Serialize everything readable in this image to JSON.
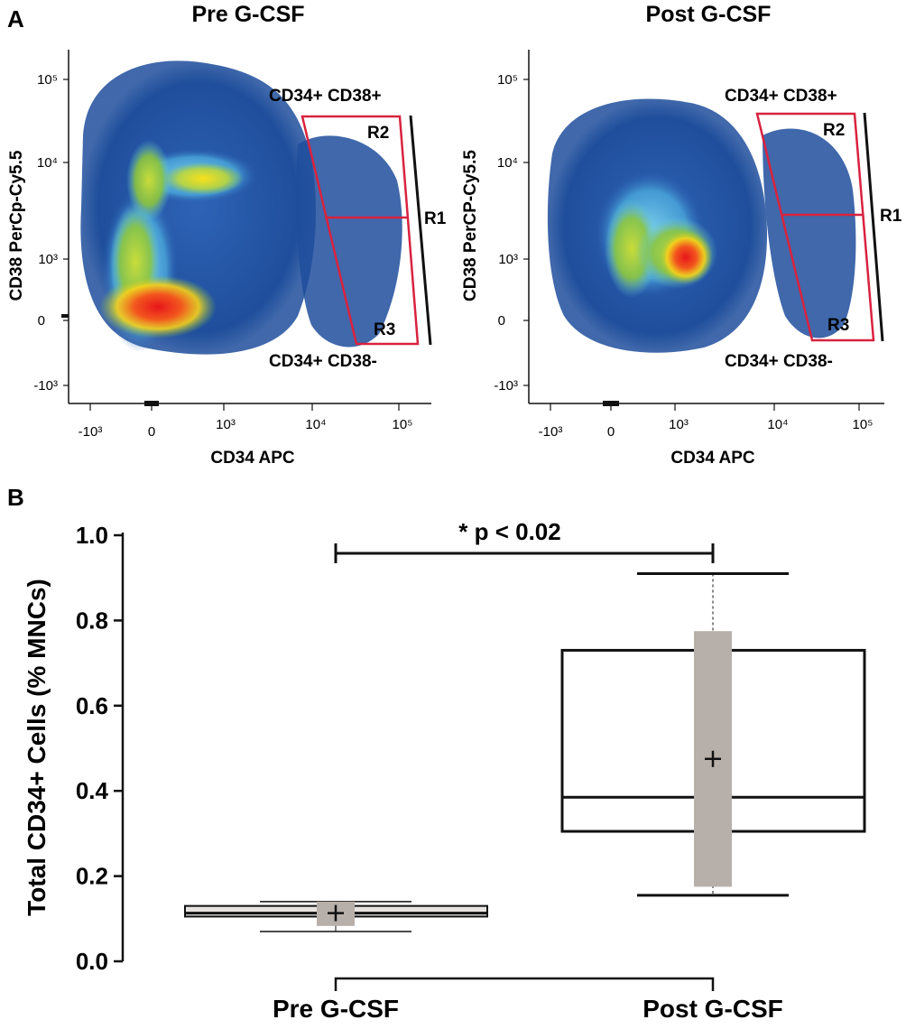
{
  "panel_a": {
    "letter": "A",
    "plots": [
      {
        "title": "Pre G-CSF",
        "xlabel": "CD34 APC",
        "ylabel": "CD38 PerCp-Cy5.5",
        "x_ticks": [
          "-10³",
          "0",
          "10³",
          "10⁴",
          "10⁵"
        ],
        "y_ticks": [
          "10⁵",
          "10⁴",
          "10³",
          "0",
          "-10³"
        ],
        "gate_top_label": "CD34+ CD38+",
        "gate_bottom_label": "CD34+ CD38-",
        "regions": [
          "R1",
          "R2",
          "R3"
        ]
      },
      {
        "title": "Post G-CSF",
        "xlabel": "CD34 APC",
        "ylabel": "CD38 PerCP-Cy5.5",
        "x_ticks": [
          "-10³",
          "0",
          "10³",
          "10⁴",
          "10⁵"
        ],
        "y_ticks": [
          "10⁵",
          "10⁴",
          "10³",
          "0",
          "-10³"
        ],
        "gate_top_label": "CD34+ CD38+",
        "gate_bottom_label": "CD34+ CD38-",
        "regions": [
          "R1",
          "R2",
          "R3"
        ]
      }
    ]
  },
  "colors": {
    "gate": "#d8233f",
    "density_low": "#1f4e9c",
    "density_mid": "#63c7e6",
    "density_green": "#8cc63f",
    "density_high": "#e8161b",
    "mean_box": "#b7b0aa"
  },
  "panel_b": {
    "letter": "B",
    "significance": "* p < 0.02"
  },
  "chart_data": {
    "type": "box",
    "ylabel": "Total CD34+ Cells (% MNCs)",
    "ylim": [
      0.0,
      1.0
    ],
    "y_ticks": [
      "0.0",
      "0.2",
      "0.4",
      "0.6",
      "0.8",
      "1.0"
    ],
    "categories": [
      "Pre G-CSF",
      "Post G-CSF"
    ],
    "boxes": [
      {
        "category": "Pre G-CSF",
        "whisker_low": 0.07,
        "q1": 0.105,
        "median": 0.113,
        "q3": 0.13,
        "whisker_high": 0.14,
        "mean": 0.113,
        "mean_low": 0.083,
        "mean_high": 0.14
      },
      {
        "category": "Post G-CSF",
        "whisker_low": 0.155,
        "q1": 0.305,
        "median": 0.385,
        "q3": 0.73,
        "whisker_high": 0.91,
        "mean": 0.475,
        "mean_low": 0.175,
        "mean_high": 0.775
      }
    ]
  }
}
